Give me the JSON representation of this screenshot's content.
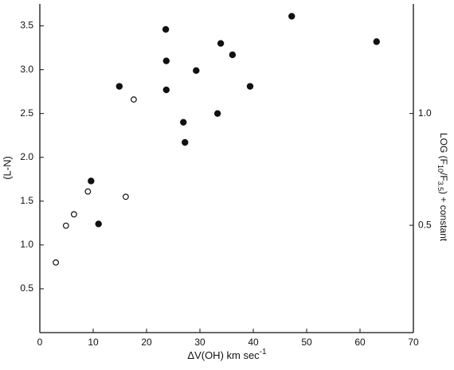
{
  "chart_data": {
    "type": "scatter",
    "x_label": "ΔV(OH) km sec",
    "x_label_exponent": "-1",
    "y_label": "(L-N)",
    "y2_label_parts": [
      "LOG (F",
      "10",
      "/F",
      "3.5",
      ") + constant"
    ],
    "xlim": [
      0,
      70
    ],
    "xticks": [
      0,
      10,
      20,
      30,
      40,
      50,
      60,
      70
    ],
    "ylim": [
      0,
      3.75
    ],
    "yticks": [
      0.5,
      {
        "value": 1,
        "label": "1.0"
      },
      1.5,
      {
        "value": 2,
        "label": "2.0"
      },
      2.5,
      {
        "value": 3,
        "label": "3.0"
      },
      3.5
    ],
    "y2lim": [
      0.02,
      1.49
    ],
    "y2ticks": [
      0.5,
      {
        "value": 1,
        "label": "1.0"
      }
    ],
    "series": [
      {
        "marker": "filled",
        "color": "#111111",
        "x": [
          9.6,
          11.0,
          14.9,
          23.6,
          23.7,
          23.7,
          26.9,
          27.2,
          29.3,
          33.3,
          33.9,
          36.1,
          39.4,
          47.2,
          63.1
        ],
        "values": [
          1.73,
          1.24,
          2.81,
          3.46,
          3.1,
          2.77,
          2.4,
          2.17,
          2.99,
          2.5,
          3.3,
          3.17,
          2.81,
          3.61,
          3.32
        ]
      },
      {
        "marker": "open",
        "color": "#111111",
        "x": [
          3.0,
          4.9,
          6.4,
          9.0,
          16.1,
          17.6
        ],
        "values": [
          0.8,
          1.22,
          1.35,
          1.61,
          1.55,
          2.66
        ]
      }
    ]
  }
}
